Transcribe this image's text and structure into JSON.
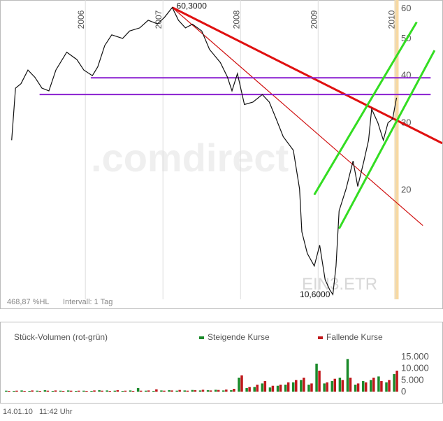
{
  "chart_data": [
    {
      "type": "line",
      "x": [
        2005.05,
        2005.1,
        2005.17,
        2005.26,
        2005.35,
        2005.44,
        2005.53,
        2005.62,
        2005.76,
        2005.89,
        2005.98,
        2006.09,
        2006.16,
        2006.25,
        2006.34,
        2006.48,
        2006.57,
        2006.7,
        2006.81,
        2006.93,
        2007.02,
        2007.12,
        2007.2,
        2007.29,
        2007.38,
        2007.5,
        2007.6,
        2007.74,
        2007.83,
        2007.89,
        2007.96,
        2008.05,
        2008.16,
        2008.28,
        2008.37,
        2008.46,
        2008.55,
        2008.68,
        2008.76,
        2008.79,
        2008.86,
        2008.95,
        2009.02,
        2009.09,
        2009.15,
        2009.19,
        2009.23,
        2009.27,
        2009.36,
        2009.45,
        2009.51,
        2009.59,
        2009.65,
        2009.69,
        2009.77,
        2009.84,
        2009.9,
        2009.96,
        2010.01
      ],
      "series": [
        {
          "color": "#111111",
          "values": [
            27,
            37,
            38,
            41.3,
            39.5,
            37,
            36.4,
            41.3,
            46,
            44,
            41.3,
            39.9,
            42.1,
            47.9,
            51.1,
            50,
            52.3,
            53.3,
            55.8,
            54.6,
            56.8,
            60.3,
            55.8,
            53.3,
            54.5,
            52.3,
            46.8,
            43.2,
            39.6,
            36.4,
            40.4,
            33.5,
            34,
            35.6,
            34,
            30.7,
            27.6,
            25.4,
            20.1,
            15.5,
            13.6,
            12.6,
            14.3,
            11.6,
            10.9,
            10.6,
            12.6,
            17.6,
            20.1,
            23.8,
            20.4,
            23.8,
            27,
            32.6,
            30,
            27,
            30,
            30.7,
            34.9
          ]
        }
      ],
      "xlim": [
        2004.9,
        2010.6
      ],
      "ylim": [
        10.3,
        63.1
      ],
      "xticks": [
        2006,
        2007,
        2008,
        2009,
        2010
      ],
      "yticks": [
        20,
        30,
        40,
        50,
        60
      ],
      "log_scale": true,
      "grid": true,
      "annotations": [
        {
          "label": "60,3000",
          "x": 2007.12,
          "value": 60.3
        },
        {
          "label": "10,6000",
          "x": 2009.19,
          "value": 10.6
        }
      ],
      "trendlines": [
        {
          "color": "#e01010",
          "width": 3,
          "x": [
            2007.12,
            2010.6
          ],
          "values": [
            60.3,
            26.5
          ]
        },
        {
          "color": "#d01010",
          "width": 1.2,
          "x": [
            2007.12,
            2010.35
          ],
          "values": [
            60.3,
            16.1
          ]
        },
        {
          "color": "#8a1fd0",
          "width": 2,
          "x": [
            2006.07,
            2010.45
          ],
          "values": [
            39.4,
            39.4
          ]
        },
        {
          "color": "#8a1fd0",
          "width": 2,
          "x": [
            2005.41,
            2010.45
          ],
          "values": [
            35.6,
            35.6
          ]
        },
        {
          "color": "#33dd22",
          "width": 3,
          "x": [
            2008.95,
            2010.27
          ],
          "values": [
            19.4,
            55.2
          ]
        },
        {
          "color": "#33dd22",
          "width": 3,
          "x": [
            2009.27,
            2010.5
          ],
          "values": [
            15.8,
            46.5
          ]
        }
      ],
      "highlight_x": 2010.01,
      "watermark": ".comdirect",
      "symbol": "EIN3.ETR",
      "range_label": "468,87 %HL",
      "interval": "Intervall: 1 Tag"
    },
    {
      "type": "bar",
      "title": "Stück-Volumen (rot-grün)",
      "x": [
        2005.0,
        2005.1,
        2005.2,
        2005.3,
        2005.4,
        2005.5,
        2005.6,
        2005.7,
        2005.8,
        2005.9,
        2006.0,
        2006.1,
        2006.2,
        2006.3,
        2006.4,
        2006.5,
        2006.6,
        2006.7,
        2006.8,
        2006.9,
        2007.0,
        2007.1,
        2007.2,
        2007.3,
        2007.4,
        2007.5,
        2007.6,
        2007.7,
        2007.8,
        2007.9,
        2008.0,
        2008.1,
        2008.2,
        2008.3,
        2008.4,
        2008.5,
        2008.6,
        2008.7,
        2008.8,
        2008.9,
        2009.0,
        2009.1,
        2009.2,
        2009.3,
        2009.4,
        2009.5,
        2009.6,
        2009.7,
        2009.8,
        2009.9,
        2010.0
      ],
      "series": [
        {
          "name": "Steigende Kurse",
          "color": "#1a8a2a",
          "values": [
            400,
            300,
            500,
            300,
            400,
            600,
            300,
            400,
            500,
            300,
            400,
            300,
            600,
            500,
            400,
            300,
            500,
            1500,
            400,
            300,
            500,
            600,
            400,
            500,
            700,
            500,
            600,
            800,
            500,
            600,
            6000,
            1500,
            2000,
            3500,
            1800,
            2500,
            3000,
            4000,
            5000,
            3000,
            12000,
            3500,
            4500,
            6000,
            14000,
            3000,
            4500,
            5000,
            6500,
            4000,
            7500
          ]
        },
        {
          "name": "Fallende Kurse",
          "color": "#c0181c",
          "values": [
            300,
            400,
            300,
            500,
            300,
            400,
            500,
            300,
            400,
            400,
            300,
            500,
            400,
            300,
            600,
            400,
            300,
            400,
            500,
            1000,
            400,
            500,
            700,
            400,
            600,
            800,
            500,
            700,
            900,
            1200,
            7000,
            2000,
            3000,
            4500,
            2500,
            3000,
            4000,
            5000,
            6000,
            3500,
            9000,
            4000,
            5500,
            5000,
            6000,
            3500,
            4000,
            6000,
            4500,
            5000,
            9000
          ]
        }
      ],
      "xlim": [
        2004.9,
        2010.6
      ],
      "ylim": [
        0,
        20400
      ],
      "yticks": [
        0,
        {
          "value": 5000,
          "label": "5.000"
        },
        {
          "value": 10000,
          "label": "10.000"
        },
        {
          "value": 15000,
          "label": "15.000"
        }
      ]
    }
  ],
  "timestamp": "14.01.10   11:42 Uhr"
}
